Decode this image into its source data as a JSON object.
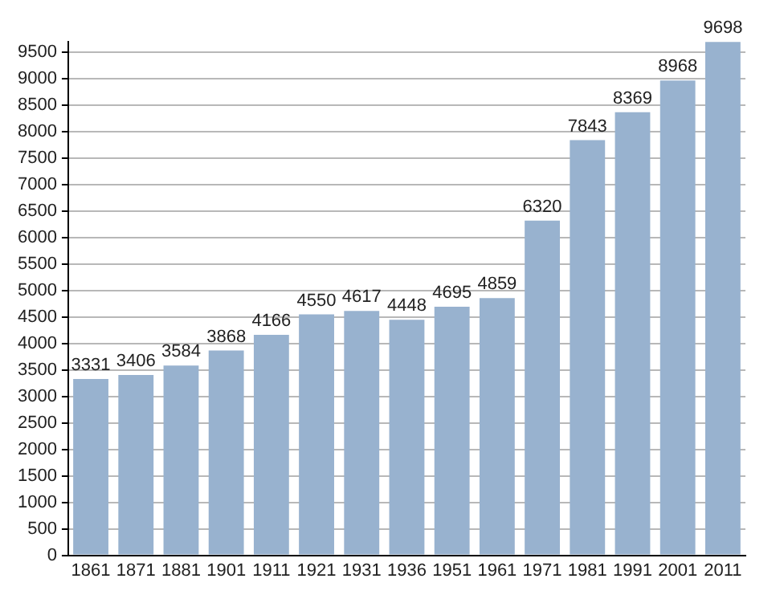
{
  "chart_data": {
    "type": "bar",
    "categories": [
      "1861",
      "1871",
      "1881",
      "1901",
      "1911",
      "1921",
      "1931",
      "1936",
      "1951",
      "1961",
      "1971",
      "1981",
      "1991",
      "2001",
      "2011"
    ],
    "values": [
      3331,
      3406,
      3584,
      3868,
      4166,
      4550,
      4617,
      4448,
      4695,
      4859,
      6320,
      7843,
      8369,
      8968,
      9698
    ],
    "color": "#98b2cf",
    "data_labels": true,
    "ylim": [
      0,
      9700
    ],
    "yticks": [
      0,
      500,
      1000,
      1500,
      2000,
      2500,
      3000,
      3500,
      4000,
      4500,
      5000,
      5500,
      6000,
      6500,
      7000,
      7500,
      8000,
      8500,
      9000,
      9500
    ],
    "grid": "y",
    "legend": false
  }
}
